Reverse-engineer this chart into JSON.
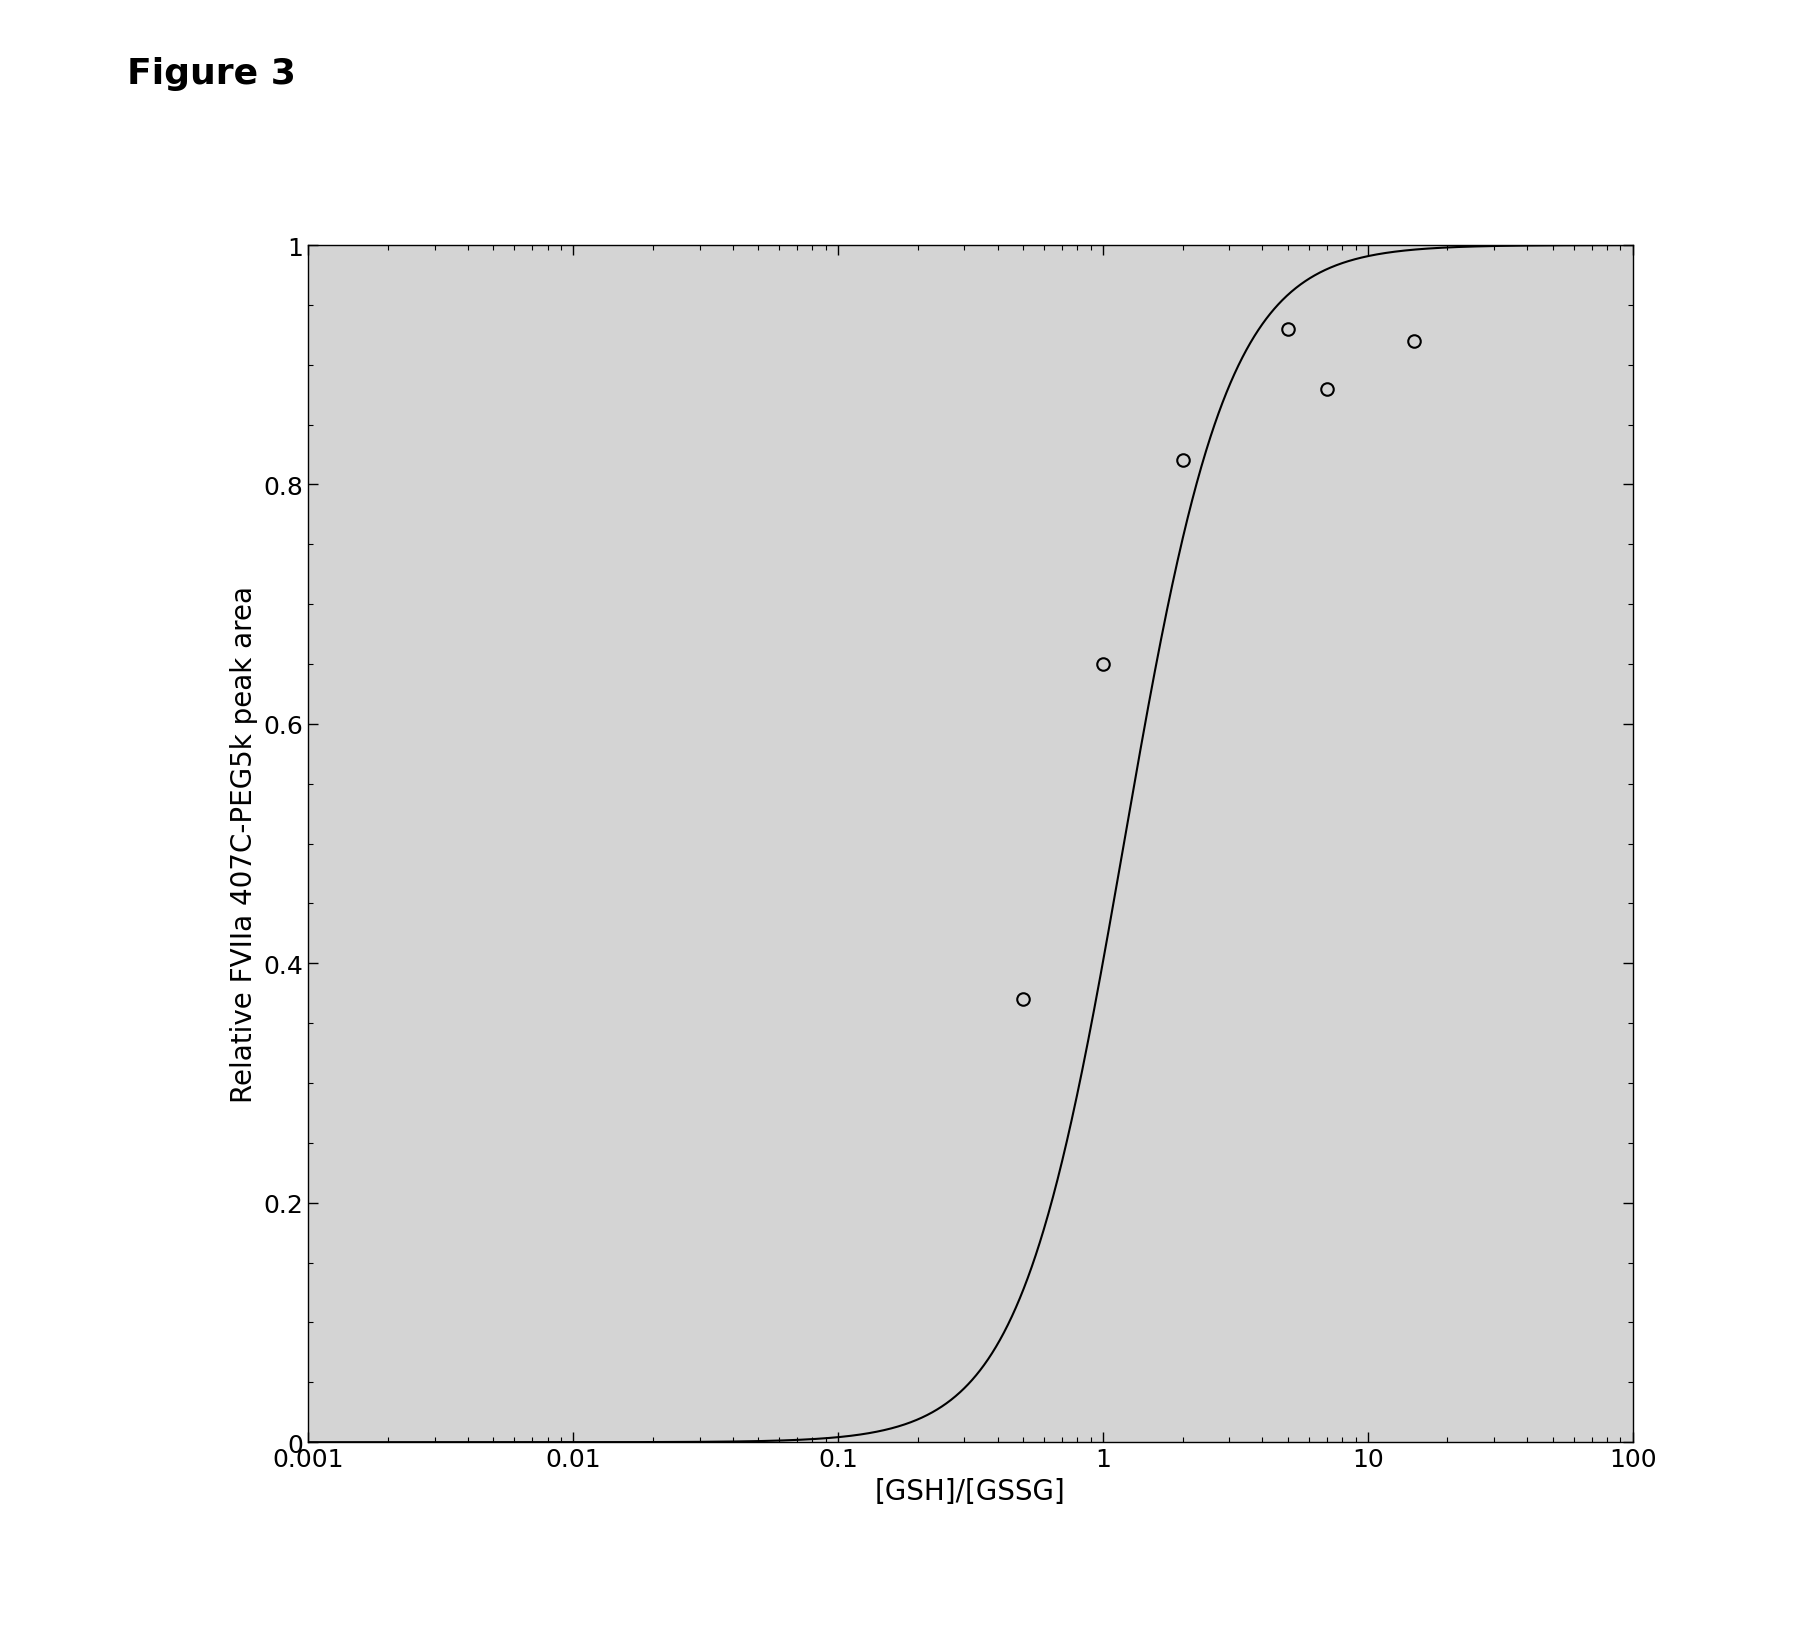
{
  "title": "Figure 3",
  "xlabel": "[GSH]/[GSSG]",
  "ylabel": "Relative FVIIa 407C-PEG5k peak area",
  "xlim": [
    0.001,
    100
  ],
  "ylim": [
    0,
    1
  ],
  "data_points_x": [
    0.5,
    1.0,
    2.0,
    5.0,
    7.0,
    15.0
  ],
  "data_points_y": [
    0.37,
    0.65,
    0.82,
    0.93,
    0.88,
    0.92
  ],
  "hill_n": 2.2,
  "hill_k": 1.2,
  "curve_color": "#000000",
  "point_color": "#000000",
  "background_color": "#d4d4d4",
  "outer_background": "#ffffff",
  "title_fontsize": 26,
  "label_fontsize": 20,
  "tick_fontsize": 18
}
